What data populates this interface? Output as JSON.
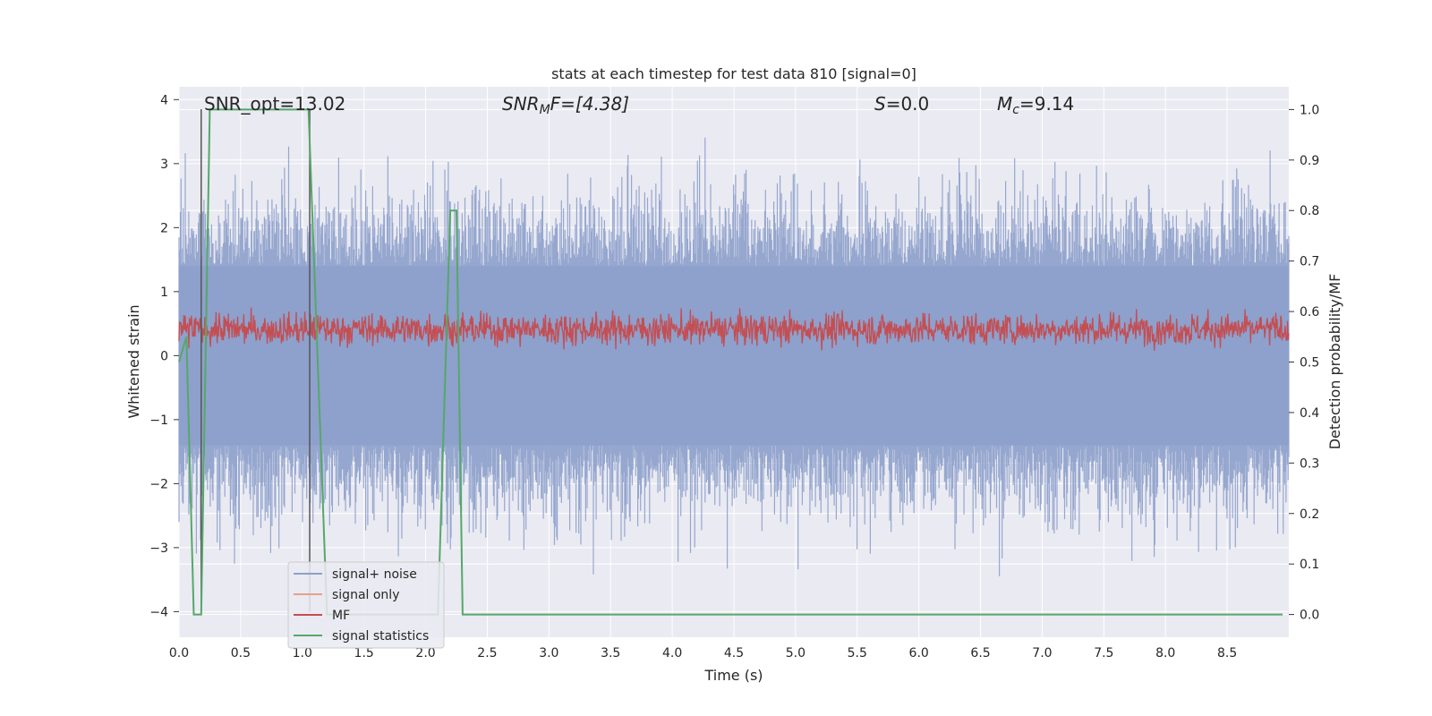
{
  "chart_data": {
    "type": "line",
    "title": "stats at each timestep for test data 810 [signal=0]",
    "xlabel": "Time (s)",
    "ylabel_left": "Whitened strain",
    "ylabel_right": "Detection probability/MF",
    "xlim": [
      0.0,
      9.0
    ],
    "ylim_left": [
      -4.4,
      4.2
    ],
    "ylim_right": [
      -0.045,
      1.045
    ],
    "x_ticks": [
      "0.0",
      "0.5",
      "1.0",
      "1.5",
      "2.0",
      "2.5",
      "3.0",
      "3.5",
      "4.0",
      "4.5",
      "5.0",
      "5.5",
      "6.0",
      "6.5",
      "7.0",
      "7.5",
      "8.0",
      "8.5"
    ],
    "y_ticks_left": [
      "4",
      "3",
      "2",
      "1",
      "0",
      "−1",
      "−2",
      "−3",
      "−4"
    ],
    "y_ticks_right": [
      "1.0",
      "0.9",
      "0.8",
      "0.7",
      "0.6",
      "0.5",
      "0.4",
      "0.3",
      "0.2",
      "0.1",
      "0.0"
    ],
    "grid": true,
    "annotations": {
      "snr_opt": "SNR_opt=13.02",
      "snr_mf_base": "SNR",
      "snr_mf_sub": "M",
      "snr_mf_rest": "F=[4.38]",
      "s_sym": "S",
      "s_val": "=0.0",
      "mc_base": "M",
      "mc_sub": "c",
      "mc_val": "=9.14"
    },
    "legend": {
      "position": "lower-left",
      "entries": [
        "signal+ noise",
        "signal only",
        "MF",
        "signal statistics"
      ]
    },
    "colors": {
      "signal_noise": "#8da0cb",
      "signal_only": "#e8a088",
      "mf": "#c44e52",
      "stats": "#55a868",
      "background": "#eaeaf2",
      "grid": "#ffffff",
      "markers": "#555555"
    },
    "series": [
      {
        "name": "signal+ noise",
        "axis": "left",
        "description": "whitened strain, dense noise spanning roughly -3.5 to 3.8",
        "envelope": [
          -3.5,
          3.8
        ]
      },
      {
        "name": "MF",
        "axis": "right",
        "description": "matched filter output fluctuating around 0.55",
        "range": [
          0.5,
          0.63
        ]
      },
      {
        "name": "signal statistics",
        "axis": "right",
        "x": [
          0.0,
          0.06,
          0.12,
          0.18,
          0.25,
          1.05,
          1.2,
          2.1,
          2.2,
          2.25,
          2.3,
          8.95
        ],
        "y": [
          0.5,
          0.55,
          0.0,
          0.0,
          1.0,
          1.0,
          0.0,
          0.0,
          0.8,
          0.8,
          0.0,
          0.0
        ]
      }
    ],
    "markers_x": [
      0.18,
      1.06
    ]
  }
}
